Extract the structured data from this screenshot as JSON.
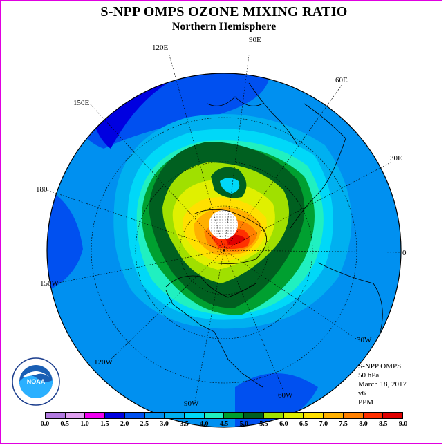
{
  "title": "S-NPP OMPS OZONE MIXING RATIO",
  "subtitle": "Northern Hemisphere",
  "longitudes": [
    "90E",
    "60E",
    "30E",
    "0",
    "30W",
    "60W",
    "90W",
    "120W",
    "150W",
    "180",
    "150E",
    "120E"
  ],
  "info": {
    "instrument": "S-NPP OMPS",
    "level": "50 hPa",
    "date": "March 18, 2017",
    "version": "v6",
    "units": "PPM"
  },
  "logo_text": "NOAA",
  "colorbar": {
    "labels": [
      "0.0",
      "0.5",
      "1.0",
      "1.5",
      "2.0",
      "2.5",
      "3.0",
      "3.5",
      "4.0",
      "4.5",
      "5.0",
      "5.5",
      "6.0",
      "6.5",
      "7.0",
      "7.5",
      "8.0",
      "8.5",
      "9.0"
    ],
    "colors": [
      "#b27ae0",
      "#e0a0f0",
      "#f000f0",
      "#0000e0",
      "#0050f0",
      "#0090f0",
      "#00b0f0",
      "#00d8f8",
      "#20f0c0",
      "#00a030",
      "#006020",
      "#a0e000",
      "#e0f000",
      "#ffe000",
      "#ffb000",
      "#ff8000",
      "#ff3000",
      "#e00000",
      "#8b5a3a"
    ]
  }
}
